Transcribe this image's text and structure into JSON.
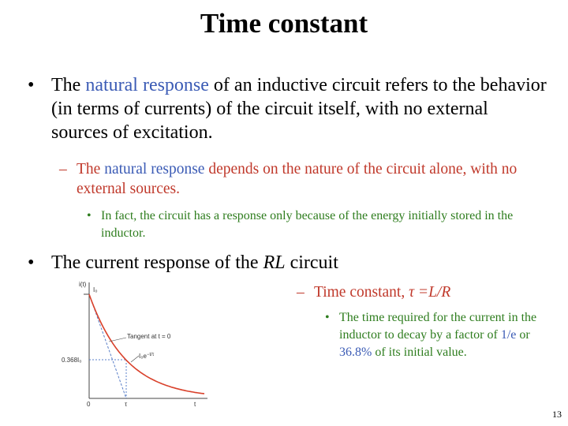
{
  "title": "Time constant",
  "bullet1": [
    "The ",
    "natural response",
    " of an inductive circuit refers to the behavior (in terms of currents) of the circuit itself, with no external sources of excitation."
  ],
  "sub1": [
    "The ",
    "natural response",
    " depends on the nature of the circuit alone, with no external sources."
  ],
  "subsub1": "In fact, the circuit has a response only because of the energy initially stored in the inductor.",
  "bullet2": [
    "The current response of the ",
    "RL",
    " circuit"
  ],
  "sub2": [
    "Time constant, ",
    "τ =L/R"
  ],
  "subsub2": [
    "The time required for the current in the inductor to decay by a factor of ",
    "1/e",
    " or ",
    "36.8%",
    " of its initial value."
  ],
  "figure": {
    "y_label": "i(t)",
    "i0": "I₀",
    "level": "0.368I₀",
    "tangent": "Tangent at t = 0",
    "curve_base": "I₀e",
    "curve_exp": "−t/τ",
    "origin": "0",
    "tau": "τ",
    "x_label": "t"
  },
  "page_number": "13"
}
